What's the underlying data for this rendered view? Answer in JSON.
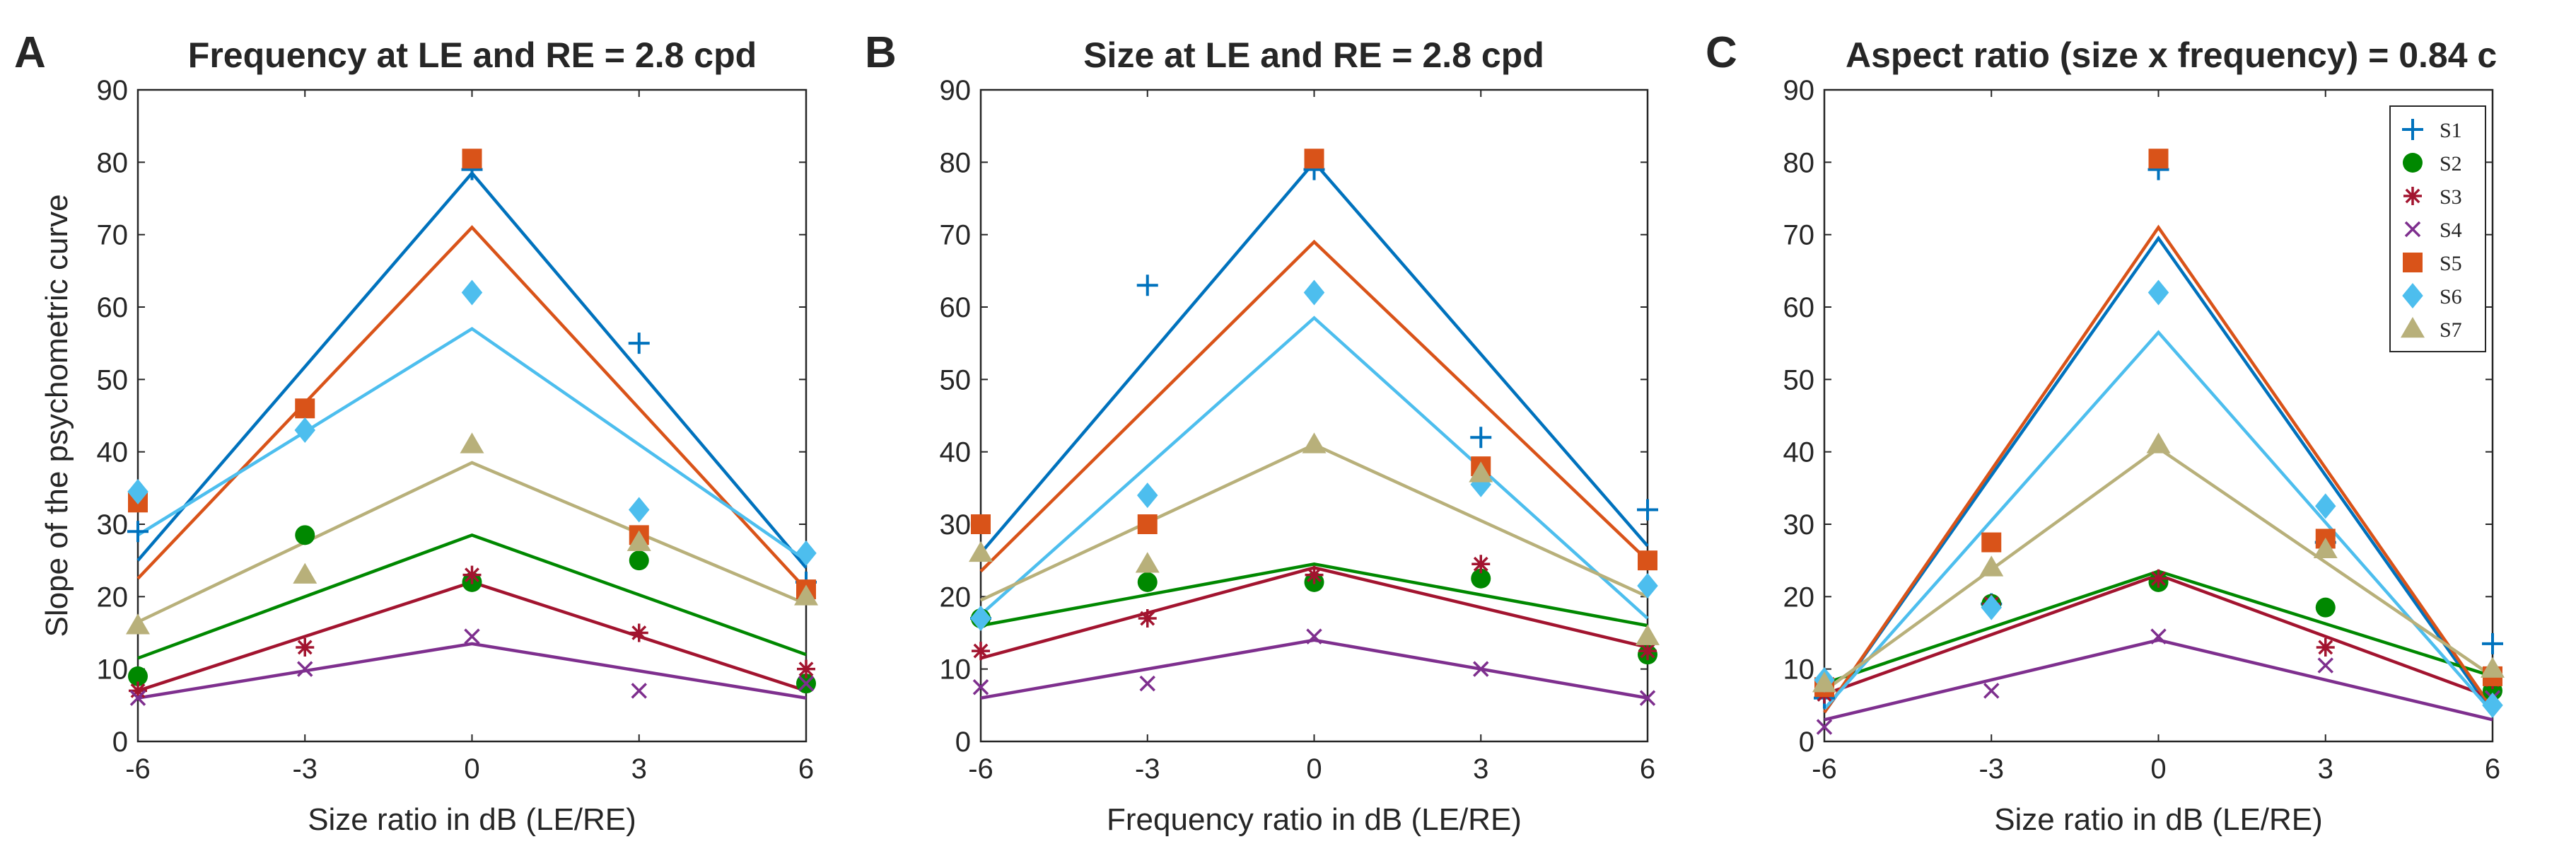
{
  "figure": {
    "y_axis_label": "Slope of the psychometric curve",
    "colors": {
      "S1": "#0072BD",
      "S2": "#008800",
      "S3": "#A2142F",
      "S4": "#7E2F8E",
      "S5": "#D95319",
      "S6": "#4DBEEE",
      "S7": "#B8B07A",
      "text": "#262626"
    },
    "legend": {
      "placement": "top-right of panel C",
      "entries": [
        "S1",
        "S2",
        "S3",
        "S4",
        "S5",
        "S6",
        "S7"
      ]
    }
  },
  "chart_data": [
    {
      "type": "scatter",
      "panel": "A",
      "title": "Frequency at LE and RE = 2.8 cpd",
      "xlabel": "Size ratio in dB (LE/RE)",
      "ylabel": "Slope of the psychometric curve",
      "x": [
        -6,
        -3,
        0,
        3,
        6
      ],
      "xticks": [
        "-6",
        "-3",
        "0",
        "3",
        "6"
      ],
      "yticks": [
        "0",
        "10",
        "20",
        "30",
        "40",
        "50",
        "60",
        "70",
        "80",
        "90"
      ],
      "ylim": [
        0,
        90
      ],
      "grid": false,
      "series": [
        {
          "name": "S1",
          "marker": "plus",
          "points": [
            [
              -6,
              29
            ],
            [
              0,
              79
            ],
            [
              3,
              55
            ],
            [
              6,
              22
            ]
          ],
          "fit": [
            25,
            78.5,
            24
          ]
        },
        {
          "name": "S2",
          "marker": "circle",
          "points": [
            [
              -6,
              9
            ],
            [
              -3,
              28.5
            ],
            [
              0,
              22
            ],
            [
              3,
              25
            ],
            [
              6,
              8
            ]
          ],
          "fit": [
            11.5,
            28.5,
            12
          ]
        },
        {
          "name": "S3",
          "marker": "asterisk",
          "points": [
            [
              -6,
              7
            ],
            [
              -3,
              13
            ],
            [
              0,
              23
            ],
            [
              3,
              15
            ],
            [
              6,
              10
            ]
          ],
          "fit": [
            7,
            22,
            7
          ]
        },
        {
          "name": "S4",
          "marker": "x",
          "points": [
            [
              -6,
              6
            ],
            [
              -3,
              10
            ],
            [
              0,
              14.5
            ],
            [
              3,
              7
            ],
            [
              6,
              8
            ]
          ],
          "fit": [
            6,
            13.5,
            6
          ]
        },
        {
          "name": "S5",
          "marker": "square",
          "points": [
            [
              -6,
              33
            ],
            [
              -3,
              46
            ],
            [
              0,
              80.5
            ],
            [
              3,
              28.5
            ],
            [
              6,
              21
            ]
          ],
          "fit": [
            22.5,
            71,
            21
          ]
        },
        {
          "name": "S6",
          "marker": "diamond",
          "points": [
            [
              -6,
              34.5
            ],
            [
              -3,
              43
            ],
            [
              0,
              62
            ],
            [
              3,
              32
            ],
            [
              6,
              26
            ]
          ],
          "fit": [
            28.5,
            57,
            25
          ]
        },
        {
          "name": "S7",
          "marker": "triangle",
          "points": [
            [
              -6,
              16
            ],
            [
              -3,
              23
            ],
            [
              0,
              41
            ],
            [
              3,
              27.5
            ],
            [
              6,
              20
            ]
          ],
          "fit": [
            16.5,
            38.5,
            19
          ]
        }
      ]
    },
    {
      "type": "scatter",
      "panel": "B",
      "title": "Size at LE and RE = 2.8 cpd",
      "xlabel": "Frequency ratio in dB (LE/RE)",
      "ylabel": "",
      "x": [
        -6,
        -3,
        0,
        3,
        6
      ],
      "xticks": [
        "-6",
        "-3",
        "0",
        "3",
        "6"
      ],
      "yticks": [
        "0",
        "10",
        "20",
        "30",
        "40",
        "50",
        "60",
        "70",
        "80",
        "90"
      ],
      "ylim": [
        0,
        90
      ],
      "grid": false,
      "series": [
        {
          "name": "S1",
          "marker": "plus",
          "points": [
            [
              -6,
              17
            ],
            [
              -3,
              63
            ],
            [
              0,
              79
            ],
            [
              3,
              42
            ],
            [
              6,
              32
            ]
          ],
          "fit": [
            26,
            80,
            27
          ]
        },
        {
          "name": "S2",
          "marker": "circle",
          "points": [
            [
              -6,
              17
            ],
            [
              -3,
              22
            ],
            [
              0,
              22
            ],
            [
              3,
              22.5
            ],
            [
              6,
              12
            ]
          ],
          "fit": [
            16,
            24.5,
            16
          ]
        },
        {
          "name": "S3",
          "marker": "asterisk",
          "points": [
            [
              -6,
              12.5
            ],
            [
              -3,
              17
            ],
            [
              0,
              23
            ],
            [
              3,
              24.5
            ],
            [
              6,
              12.5
            ]
          ],
          "fit": [
            11.5,
            24,
            13
          ]
        },
        {
          "name": "S4",
          "marker": "x",
          "points": [
            [
              -6,
              7.5
            ],
            [
              -3,
              8
            ],
            [
              0,
              14.5
            ],
            [
              3,
              10
            ],
            [
              6,
              6
            ]
          ],
          "fit": [
            6,
            14,
            6
          ]
        },
        {
          "name": "S5",
          "marker": "square",
          "points": [
            [
              -6,
              30
            ],
            [
              -3,
              30
            ],
            [
              0,
              80.5
            ],
            [
              3,
              38
            ],
            [
              6,
              25
            ]
          ],
          "fit": [
            23.5,
            69,
            25
          ]
        },
        {
          "name": "S6",
          "marker": "diamond",
          "points": [
            [
              -6,
              17
            ],
            [
              -3,
              34
            ],
            [
              0,
              62
            ],
            [
              3,
              35.5
            ],
            [
              6,
              21.5
            ]
          ],
          "fit": [
            17.5,
            58.5,
            17
          ]
        },
        {
          "name": "S7",
          "marker": "triangle",
          "points": [
            [
              -6,
              26
            ],
            [
              -3,
              24.5
            ],
            [
              0,
              41
            ],
            [
              3,
              37
            ],
            [
              6,
              14.5
            ]
          ],
          "fit": [
            19.5,
            41,
            20
          ]
        }
      ]
    },
    {
      "type": "scatter",
      "panel": "C",
      "title": "Aspect ratio (size x frequency) = 0.84 c",
      "xlabel": "Size ratio in dB (LE/RE)",
      "ylabel": "",
      "x": [
        -6,
        -3,
        0,
        3,
        6
      ],
      "xticks": [
        "-6",
        "-3",
        "0",
        "3",
        "6"
      ],
      "yticks": [
        "0",
        "10",
        "20",
        "30",
        "40",
        "50",
        "60",
        "70",
        "80",
        "90"
      ],
      "ylim": [
        0,
        90
      ],
      "grid": false,
      "series": [
        {
          "name": "S1",
          "marker": "plus",
          "points": [
            [
              -6,
              6
            ],
            [
              -3,
              19
            ],
            [
              0,
              79
            ],
            [
              3,
              27.5
            ],
            [
              6,
              13.5
            ]
          ],
          "fit": [
            4,
            69.5,
            4
          ]
        },
        {
          "name": "S2",
          "marker": "circle",
          "points": [
            [
              -6,
              7.5
            ],
            [
              -3,
              19
            ],
            [
              0,
              22
            ],
            [
              3,
              18.5
            ],
            [
              6,
              7
            ]
          ],
          "fit": [
            8,
            23.5,
            9
          ]
        },
        {
          "name": "S3",
          "marker": "asterisk",
          "points": [
            [
              -6,
              6.5
            ],
            [
              -3,
              19
            ],
            [
              0,
              22.5
            ],
            [
              3,
              13
            ],
            [
              6,
              8.5
            ]
          ],
          "fit": [
            6.5,
            23,
            6
          ]
        },
        {
          "name": "S4",
          "marker": "x",
          "points": [
            [
              -6,
              2
            ],
            [
              -3,
              7
            ],
            [
              0,
              14.5
            ],
            [
              3,
              10.5
            ],
            [
              6,
              6
            ]
          ],
          "fit": [
            3,
            14,
            3
          ]
        },
        {
          "name": "S5",
          "marker": "square",
          "points": [
            [
              -6,
              7.5
            ],
            [
              -3,
              27.5
            ],
            [
              0,
              80.5
            ],
            [
              3,
              28
            ],
            [
              6,
              9
            ]
          ],
          "fit": [
            4,
            71,
            4.5
          ]
        },
        {
          "name": "S6",
          "marker": "diamond",
          "points": [
            [
              -6,
              8.5
            ],
            [
              -3,
              18.5
            ],
            [
              0,
              62
            ],
            [
              3,
              32.5
            ],
            [
              6,
              5
            ]
          ],
          "fit": [
            4.5,
            56.5,
            4
          ]
        },
        {
          "name": "S7",
          "marker": "triangle",
          "points": [
            [
              -6,
              8
            ],
            [
              -3,
              24
            ],
            [
              0,
              41
            ],
            [
              3,
              26.5
            ],
            [
              6,
              10
            ]
          ],
          "fit": [
            7,
            40.5,
            9
          ]
        }
      ]
    }
  ]
}
